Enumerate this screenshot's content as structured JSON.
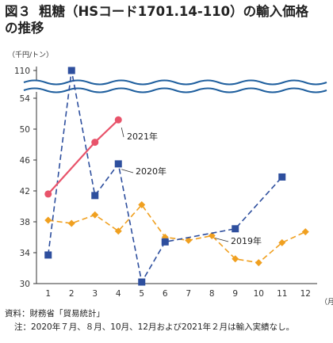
{
  "figure": {
    "number": "図３",
    "title_line1": "粗糖（HSコード1701.14-110）の輸入価格",
    "title_line2": "の推移"
  },
  "source": "資料：財務省「貿易統計」",
  "note": "注：2020年７月、８月、10月、12月および2021年２月は輸入実績なし。",
  "chart_data": {
    "type": "line",
    "unit_label": "（千円/トン）",
    "x_unit_label": "（月）",
    "categories": [
      "1",
      "2",
      "3",
      "4",
      "5",
      "6",
      "7",
      "8",
      "9",
      "10",
      "11",
      "12"
    ],
    "yticks": [
      30,
      34,
      38,
      42,
      46,
      50,
      54,
      110
    ],
    "ylim": [
      30,
      54
    ],
    "axis_break": {
      "lower_max": 54,
      "upper_value": 110
    },
    "grid": false,
    "series": [
      {
        "name": "2019年",
        "color": "#f0a020",
        "style": "dashed",
        "marker": "diamond",
        "x": [
          1,
          2,
          3,
          4,
          5,
          6,
          7,
          8,
          9,
          10,
          11,
          12
        ],
        "values": [
          38.2,
          37.8,
          38.9,
          36.8,
          40.2,
          36.0,
          35.6,
          36.2,
          33.2,
          32.7,
          35.3,
          36.7
        ]
      },
      {
        "name": "2020年",
        "color": "#2e4f9e",
        "style": "dashed",
        "marker": "square",
        "x": [
          1,
          2,
          3,
          4,
          5,
          6,
          9,
          11
        ],
        "values": [
          33.7,
          110,
          41.4,
          45.5,
          30.2,
          35.4,
          37.1,
          43.8
        ]
      },
      {
        "name": "2021年",
        "color": "#e8536a",
        "style": "solid",
        "marker": "circle",
        "x": [
          1,
          3,
          4
        ],
        "values": [
          41.6,
          48.3,
          51.2
        ]
      }
    ]
  }
}
